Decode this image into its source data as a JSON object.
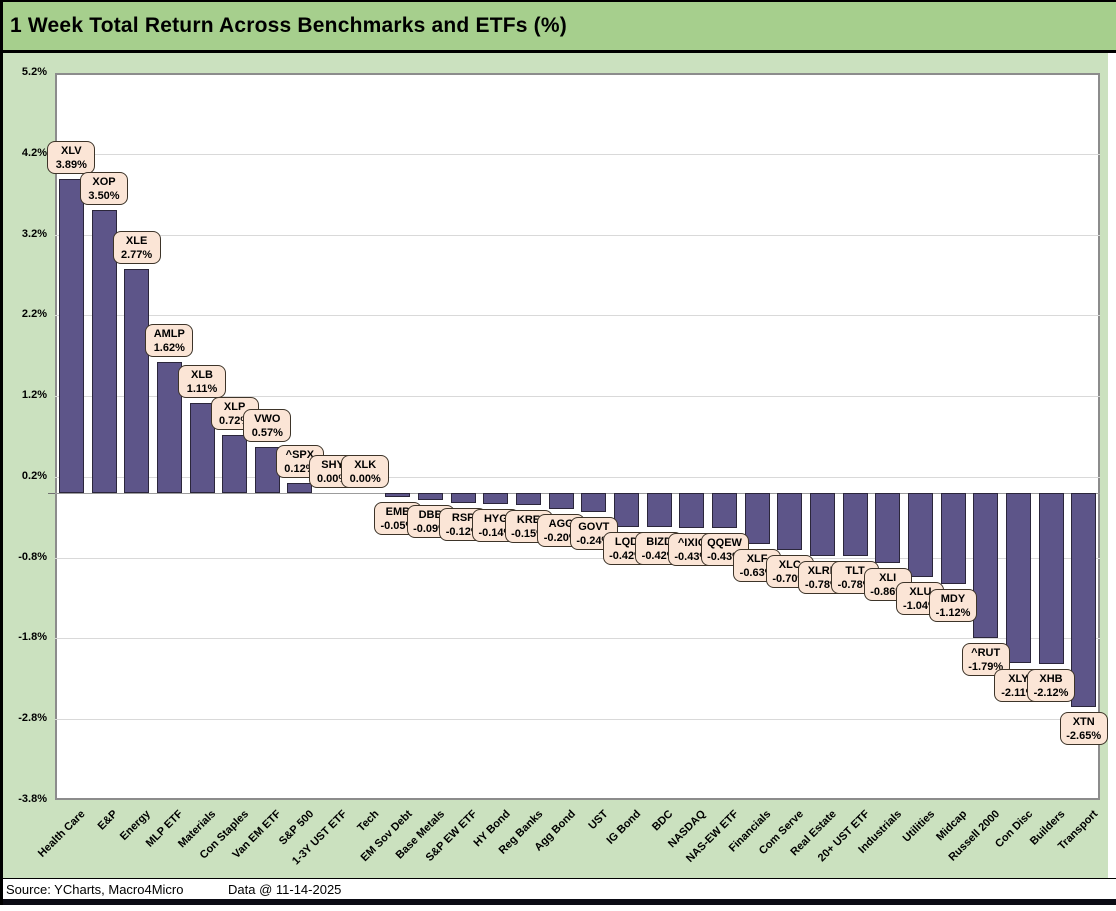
{
  "header": {
    "title": "1 Week Total Return Across Benchmarks and ETFs (%)"
  },
  "footer": {
    "source": "Source: YCharts, Macro4Micro",
    "data_date": "Data @ 11-14-2025"
  },
  "colors": {
    "title_band": "#A6CF8D",
    "background": "#CBE1BF",
    "plot_background": "#FFFFFF",
    "bar_fill": "#5D5589",
    "bar_border": "#2B263B",
    "callout_fill": "#FBE5D6",
    "callout_border": "#3D3429",
    "gridline": "#D9D9D9"
  },
  "chart_data": {
    "type": "bar",
    "title": "1 Week Total Return Across Benchmarks and ETFs (%)",
    "xlabel": "",
    "ylabel": "",
    "ylim": [
      -3.8,
      5.2
    ],
    "ytick_interval": 1.0,
    "ytick_labels": [
      "5.2%",
      "4.2%",
      "3.2%",
      "2.2%",
      "1.2%",
      "0.2%",
      "-0.8%",
      "-1.8%",
      "-2.8%",
      "-3.8%"
    ],
    "grid": true,
    "legend_position": "none",
    "points": [
      {
        "category": "Health Care",
        "ticker": "XLV",
        "value": 3.89,
        "label": "3.89%"
      },
      {
        "category": "E&P",
        "ticker": "XOP",
        "value": 3.5,
        "label": "3.50%"
      },
      {
        "category": "Energy",
        "ticker": "XLE",
        "value": 2.77,
        "label": "2.77%"
      },
      {
        "category": "MLP ETF",
        "ticker": "AMLP",
        "value": 1.62,
        "label": "1.62%"
      },
      {
        "category": "Materials",
        "ticker": "XLB",
        "value": 1.11,
        "label": "1.11%"
      },
      {
        "category": "Con Staples",
        "ticker": "XLP",
        "value": 0.72,
        "label": "0.72%"
      },
      {
        "category": "Van EM ETF",
        "ticker": "VWO",
        "value": 0.57,
        "label": "0.57%"
      },
      {
        "category": "S&P 500",
        "ticker": "^SPX",
        "value": 0.12,
        "label": "0.12%"
      },
      {
        "category": "1-3Y UST ETF",
        "ticker": "SHY",
        "value": 0.0,
        "label": "0.00%"
      },
      {
        "category": "Tech",
        "ticker": "XLK",
        "value": 0.0,
        "label": "0.00%"
      },
      {
        "category": "EM Sov Debt",
        "ticker": "EMB",
        "value": -0.05,
        "label": "-0.05%"
      },
      {
        "category": "Base Metals",
        "ticker": "DBB",
        "value": -0.09,
        "label": "-0.09%"
      },
      {
        "category": "S&P EW ETF",
        "ticker": "RSP",
        "value": -0.12,
        "label": "-0.12%"
      },
      {
        "category": "HY Bond",
        "ticker": "HYG",
        "value": -0.14,
        "label": "-0.14%"
      },
      {
        "category": "Reg Banks",
        "ticker": "KRE",
        "value": -0.15,
        "label": "-0.15%"
      },
      {
        "category": "Agg Bond",
        "ticker": "AGG",
        "value": -0.2,
        "label": "-0.20%"
      },
      {
        "category": "UST",
        "ticker": "GOVT",
        "value": -0.24,
        "label": "-0.24%"
      },
      {
        "category": "IG Bond",
        "ticker": "LQD",
        "value": -0.42,
        "label": "-0.42%"
      },
      {
        "category": "BDC",
        "ticker": "BIZD",
        "value": -0.42,
        "label": "-0.42%"
      },
      {
        "category": "NASDAQ",
        "ticker": "^IXIC",
        "value": -0.43,
        "label": "-0.43%"
      },
      {
        "category": "NAS-EW ETF",
        "ticker": "QQEW",
        "value": -0.43,
        "label": "-0.43%"
      },
      {
        "category": "Financials",
        "ticker": "XLF",
        "value": -0.63,
        "label": "-0.63%"
      },
      {
        "category": "Com Serve",
        "ticker": "XLC",
        "value": -0.7,
        "label": "-0.70%"
      },
      {
        "category": "Real Estate",
        "ticker": "XLRE",
        "value": -0.78,
        "label": "-0.78%"
      },
      {
        "category": "20+ UST ETF",
        "ticker": "TLT",
        "value": -0.78,
        "label": "-0.78%"
      },
      {
        "category": "Industrials",
        "ticker": "XLI",
        "value": -0.86,
        "label": "-0.86%"
      },
      {
        "category": "Utilities",
        "ticker": "XLU",
        "value": -1.04,
        "label": "-1.04%"
      },
      {
        "category": "Midcap",
        "ticker": "MDY",
        "value": -1.12,
        "label": "-1.12%"
      },
      {
        "category": "Russell 2000",
        "ticker": "^RUT",
        "value": -1.79,
        "label": "-1.79%"
      },
      {
        "category": "Con Disc",
        "ticker": "XLY",
        "value": -2.11,
        "label": "-2.11%"
      },
      {
        "category": "Builders",
        "ticker": "XHB",
        "value": -2.12,
        "label": "-2.12%"
      },
      {
        "category": "Transport",
        "ticker": "XTN",
        "value": -2.65,
        "label": "-2.65%"
      }
    ]
  }
}
